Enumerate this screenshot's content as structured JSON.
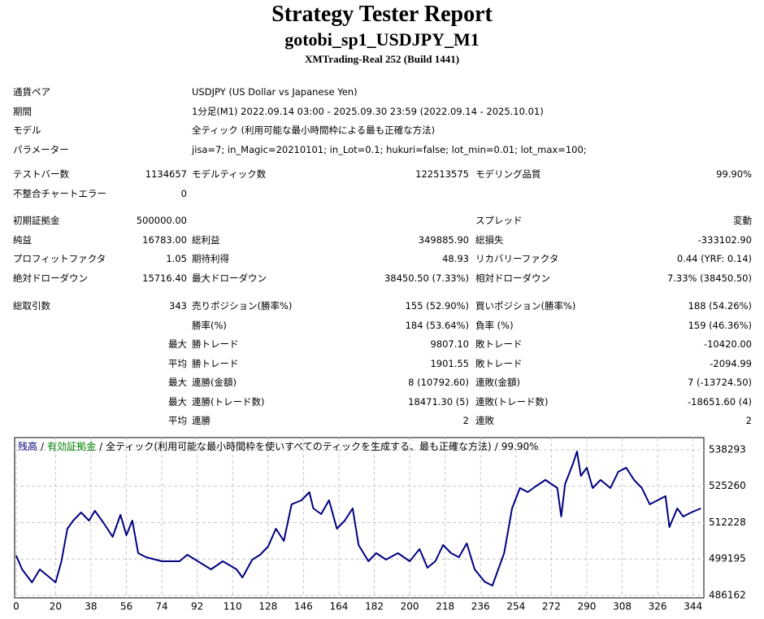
{
  "header": {
    "title": "Strategy Tester Report",
    "subtitle": "gotobi_sp1_USDJPY_M1",
    "build": "XMTrading-Real 252 (Build 1441)"
  },
  "info": [
    {
      "label": "通貨ペア",
      "value": "USDJPY (US Dollar vs Japanese Yen)"
    },
    {
      "label": "期間",
      "value": "1分足(M1) 2022.09.14 03:00 - 2025.09.30 23:59 (2022.09.14 - 2025.10.01)"
    },
    {
      "label": "モデル",
      "value": "全ティック (利用可能な最小時間枠による最も正確な方法)"
    },
    {
      "label": "パラメーター",
      "value": "jisa=7; in_Magic=20210101; in_Lot=0.1; hukuri=false; lot_min=0.01; lot_max=100;"
    }
  ],
  "groups": [
    [
      {
        "l1": "テストバー数",
        "v1": "1134657",
        "l2": "モデルティック数",
        "v2": "122513575",
        "l3": "モデリング品質",
        "v3": "99.90%"
      },
      {
        "l1": "不整合チャートエラー",
        "v1": "0"
      }
    ],
    [
      {
        "l1": "初期証拠金",
        "v1": "500000.00",
        "l3": "スプレッド",
        "v3": "変動"
      },
      {
        "l1": "純益",
        "v1": "16783.00",
        "l2": "総利益",
        "v2": "349885.90",
        "l3": "総損失",
        "v3": "-333102.90"
      },
      {
        "l1": "プロフィットファクタ",
        "v1": "1.05",
        "l2": "期待利得",
        "v2": "48.93",
        "l3": "リカバリーファクタ",
        "v3": "0.44 (YRF: 0.14)"
      },
      {
        "l1": "絶対ドローダウン",
        "v1": "15716.40",
        "l2": "最大ドローダウン",
        "v2": "38450.50 (7.33%)",
        "l3": "相対ドローダウン",
        "v3": "7.33% (38450.50)"
      }
    ],
    [
      {
        "l1": "総取引数",
        "v1": "343",
        "l2": "売りポジション(勝率%)",
        "v2": "155 (52.90%)",
        "l3": "買いポジション(勝率%)",
        "v3": "188 (54.26%)"
      },
      {
        "l2": "勝率(%)",
        "v2": "184 (53.64%)",
        "l3": "負率 (%)",
        "v3": "159 (46.36%)"
      },
      {
        "v1": "最大",
        "l2": "勝トレード",
        "v2": "9807.10",
        "l3": "敗トレード",
        "v3": "-10420.00"
      },
      {
        "v1": "平均",
        "l2": "勝トレード",
        "v2": "1901.55",
        "l3": "敗トレード",
        "v3": "-2094.99"
      },
      {
        "v1": "最大",
        "l2": "連勝(金額)",
        "v2": "8 (10792.60)",
        "l3": "連敗(金額)",
        "v3": "7 (-13724.50)"
      },
      {
        "v1": "最大",
        "l2": "連勝(トレード数)",
        "v2": "18471.30 (5)",
        "l3": "連敗(トレード数)",
        "v3": "-18651.60 (4)"
      },
      {
        "v1": "平均",
        "l2": "連勝",
        "v2": "2",
        "l3": "連敗",
        "v3": "2"
      }
    ]
  ],
  "chart_data": {
    "type": "line",
    "legend_separator": "/",
    "equity_label": "有効証拠金",
    "equity_color": "#008000",
    "model": "全ティック(利用可能な最小時間枠を使いすべてのティックを生成する、最も正確な方法)",
    "quality": "99.90%",
    "x": [
      0,
      3,
      8,
      12,
      20,
      23,
      26,
      29,
      33,
      37,
      40,
      45,
      49,
      53,
      56,
      59,
      62,
      66,
      74,
      83,
      87,
      91,
      99,
      105,
      112,
      115,
      120,
      124,
      128,
      132,
      136,
      140,
      145,
      149,
      151,
      155,
      159,
      163,
      167,
      171,
      174,
      179,
      183,
      188,
      194,
      200,
      205,
      209,
      213,
      217,
      221,
      225,
      229,
      233,
      238,
      242,
      245,
      248,
      252,
      256,
      260,
      264,
      269,
      272,
      275,
      277,
      279,
      283,
      285,
      287,
      290,
      293,
      297,
      302,
      306,
      310,
      314,
      318,
      322,
      326,
      330,
      332,
      336,
      339,
      343,
      348
    ],
    "series": [
      {
        "name": "残高",
        "color": "#000080",
        "values": [
          500437,
          495487,
          490827,
          495487,
          490827,
          498399,
          510047,
          512959,
          515871,
          512959,
          516453,
          511503,
          507135,
          514997,
          507717,
          512959,
          501311,
          499855,
          498399,
          498399,
          500728,
          498981,
          495487,
          498399,
          495487,
          492575,
          498981,
          500728,
          503640,
          510047,
          505679,
          518783,
          520239,
          523151,
          517327,
          515288,
          520239,
          510047,
          512959,
          517327,
          504223,
          498399,
          501311,
          498981,
          501311,
          498399,
          502767,
          496069,
          498399,
          504223,
          501311,
          499855,
          504805,
          495487,
          491119,
          489663,
          495487,
          501311,
          517327,
          524607,
          523151,
          525189,
          527519,
          526063,
          524607,
          514415,
          526063,
          533343,
          537711,
          528975,
          531887,
          524607,
          527519,
          524607,
          530431,
          531887,
          527519,
          524607,
          518783,
          520239,
          521695,
          510629,
          517327,
          514415,
          515871,
          517327
        ]
      }
    ],
    "xlim": [
      -0.8,
      349.5
    ],
    "xticks": [
      0,
      20,
      38,
      56,
      74,
      92,
      110,
      128,
      146,
      164,
      182,
      200,
      218,
      236,
      254,
      272,
      290,
      308,
      326,
      344
    ],
    "ylim": [
      485288,
      542661
    ],
    "yticks": [
      486162,
      499195,
      512228,
      525260,
      538293
    ],
    "grid": true
  }
}
